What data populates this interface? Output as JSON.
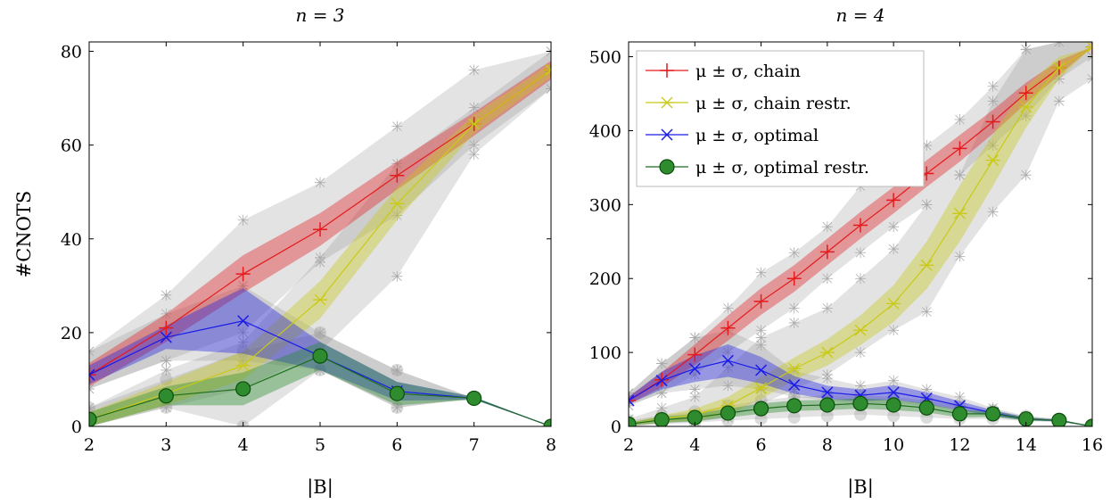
{
  "chart_data": [
    {
      "type": "line",
      "title": "n = 3",
      "xlabel": "|B|",
      "ylabel": "#CNOTS",
      "xlim": [
        2,
        8
      ],
      "ylim": [
        0,
        82
      ],
      "xticks": [
        2,
        3,
        4,
        5,
        6,
        7,
        8
      ],
      "yticks": [
        0,
        20,
        40,
        60,
        80
      ],
      "x": [
        2,
        3,
        4,
        5,
        6,
        7,
        8
      ],
      "legend": "none",
      "series": [
        {
          "name": "μ ± σ, chain",
          "color": "#e41a1c",
          "marker": "plus",
          "mean": [
            11,
            21,
            32.5,
            42,
            53.5,
            64.5,
            76
          ],
          "std": [
            2.5,
            3,
            4,
            3.5,
            3,
            2.5,
            2
          ],
          "min": [
            8,
            14,
            20,
            35,
            45,
            60,
            72
          ],
          "max": [
            16,
            28,
            44,
            52,
            64,
            76,
            80
          ]
        },
        {
          "name": "μ ± σ, chain restr.",
          "color": "#c9c917",
          "marker": "star",
          "mean": [
            1.5,
            7,
            13,
            27,
            47.5,
            64.5,
            76
          ],
          "std": [
            1.5,
            2.5,
            3,
            4,
            3.5,
            2,
            1.5
          ],
          "min": [
            0,
            4,
            8,
            16,
            32,
            58,
            72
          ],
          "max": [
            4,
            12,
            18,
            36,
            56,
            68,
            80
          ]
        },
        {
          "name": "μ ± σ, optimal",
          "color": "#1a1ae6",
          "marker": "x",
          "mean": [
            11,
            19,
            22.5,
            15,
            7.5,
            6,
            0
          ],
          "std": [
            2,
            2.5,
            7,
            3,
            2,
            0.3,
            0
          ],
          "min": [
            8,
            14,
            14,
            12,
            4,
            6,
            0
          ],
          "max": [
            16,
            24,
            30,
            20,
            12,
            6,
            0
          ]
        },
        {
          "name": "μ ± σ, optimal restr.",
          "color": "#228b22",
          "marker": "circle",
          "mean": [
            1.5,
            6.5,
            8,
            15,
            7,
            6,
            0
          ],
          "std": [
            1.5,
            2,
            3.5,
            3,
            2.5,
            0.3,
            0
          ],
          "min": [
            0,
            4,
            0,
            12,
            4,
            6,
            0
          ],
          "max": [
            4,
            10,
            16,
            20,
            12,
            6,
            0
          ]
        }
      ]
    },
    {
      "type": "line",
      "title": "n = 4",
      "xlabel": "|B|",
      "ylabel": "",
      "xlim": [
        2,
        16
      ],
      "ylim": [
        0,
        520
      ],
      "xticks": [
        2,
        4,
        6,
        8,
        10,
        12,
        14,
        16
      ],
      "yticks": [
        0,
        100,
        200,
        300,
        400,
        500
      ],
      "x": [
        2,
        3,
        4,
        5,
        6,
        7,
        8,
        9,
        10,
        11,
        12,
        13,
        14,
        15,
        16
      ],
      "legend": "top-left",
      "series": [
        {
          "name": "μ ± σ, chain",
          "color": "#e41a1c",
          "marker": "plus",
          "mean": [
            35,
            63,
            97,
            133,
            169,
            200,
            236,
            272,
            306,
            342,
            376,
            412,
            451,
            485,
            513
          ],
          "std": [
            5,
            10,
            14,
            17,
            18,
            18,
            18,
            18,
            18,
            18,
            18,
            16,
            14,
            10,
            0
          ],
          "min": [
            28,
            45,
            70,
            100,
            130,
            160,
            200,
            235,
            270,
            300,
            340,
            380,
            420,
            470,
            500
          ],
          "max": [
            45,
            85,
            120,
            160,
            208,
            235,
            270,
            325,
            340,
            380,
            415,
            460,
            510,
            520,
            520
          ]
        },
        {
          "name": "μ ± σ, chain restr.",
          "color": "#c9c917",
          "marker": "star",
          "mean": [
            3,
            10,
            16,
            28,
            52,
            78,
            100,
            130,
            166,
            218,
            288,
            360,
            432,
            485,
            513
          ],
          "std": [
            2,
            5,
            8,
            12,
            15,
            15,
            18,
            20,
            25,
            32,
            38,
            35,
            28,
            15,
            0
          ],
          "min": [
            0,
            4,
            6,
            12,
            30,
            50,
            70,
            100,
            130,
            155,
            230,
            290,
            340,
            440,
            470
          ],
          "max": [
            10,
            25,
            40,
            80,
            120,
            140,
            160,
            200,
            240,
            300,
            340,
            440,
            510,
            520,
            520
          ]
        },
        {
          "name": "μ ± σ, optimal",
          "color": "#1a1ae6",
          "marker": "x",
          "mean": [
            35,
            62,
            78,
            89,
            76,
            56,
            46,
            42,
            46,
            38,
            28,
            18,
            10,
            8,
            0
          ],
          "std": [
            5,
            12,
            18,
            22,
            18,
            12,
            9,
            8,
            10,
            8,
            6,
            4,
            2,
            1,
            0
          ],
          "min": [
            28,
            45,
            50,
            55,
            50,
            40,
            35,
            30,
            32,
            28,
            20,
            14,
            8,
            6,
            0
          ],
          "max": [
            45,
            85,
            120,
            130,
            110,
            75,
            65,
            55,
            62,
            50,
            40,
            25,
            14,
            10,
            0
          ]
        },
        {
          "name": "μ ± σ, optimal restr.",
          "color": "#228b22",
          "marker": "circle",
          "mean": [
            3,
            9,
            12,
            18,
            24,
            28,
            29,
            31,
            29,
            25,
            17,
            17,
            10,
            8,
            0
          ],
          "std": [
            2,
            4,
            5,
            6,
            7,
            7,
            7,
            7,
            7,
            6,
            5,
            4,
            2,
            1,
            0
          ],
          "min": [
            0,
            3,
            5,
            8,
            10,
            12,
            14,
            16,
            14,
            12,
            10,
            10,
            7,
            6,
            0
          ],
          "max": [
            8,
            15,
            20,
            28,
            35,
            40,
            42,
            42,
            40,
            35,
            28,
            22,
            14,
            10,
            0
          ]
        }
      ]
    }
  ]
}
